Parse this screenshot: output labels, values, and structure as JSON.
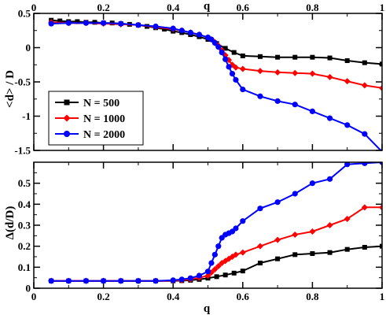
{
  "chart_data": [
    {
      "type": "line",
      "panel": "top",
      "xlabel": "q",
      "xlabel_position": "top",
      "ylabel": "<d> / D",
      "xlim": [
        0,
        1
      ],
      "ylim": [
        -1.5,
        0.5
      ],
      "xticks": [
        "0",
        "0.2",
        "0.4",
        "0.6",
        "0.8",
        "1"
      ],
      "xtick_values": [
        0,
        0.2,
        0.4,
        0.6,
        0.8,
        1
      ],
      "yticks": [
        "-1.5",
        "-1",
        "-0.5",
        "0",
        "0.5"
      ],
      "ytick_values": [
        -1.5,
        -1,
        -0.5,
        0,
        0.5
      ],
      "legend_position": "lower-left",
      "series": [
        {
          "name": "N = 500",
          "color": "#000000",
          "marker": "square",
          "x": [
            0.05,
            0.075,
            0.1,
            0.125,
            0.15,
            0.175,
            0.2,
            0.225,
            0.25,
            0.275,
            0.3,
            0.325,
            0.35,
            0.375,
            0.4,
            0.425,
            0.45,
            0.475,
            0.5,
            0.525,
            0.55,
            0.575,
            0.6,
            0.65,
            0.7,
            0.75,
            0.8,
            0.85,
            0.9,
            0.95,
            1.0
          ],
          "y": [
            0.4,
            0.39,
            0.38,
            0.38,
            0.37,
            0.37,
            0.36,
            0.36,
            0.35,
            0.34,
            0.33,
            0.31,
            0.29,
            0.27,
            0.24,
            0.22,
            0.19,
            0.16,
            0.12,
            0.06,
            -0.01,
            -0.07,
            -0.12,
            -0.13,
            -0.14,
            -0.14,
            -0.14,
            -0.15,
            -0.19,
            -0.22,
            -0.24
          ]
        },
        {
          "name": "N = 1000",
          "color": "#ff0000",
          "marker": "diamond",
          "x": [
            0.05,
            0.1,
            0.15,
            0.2,
            0.25,
            0.3,
            0.35,
            0.4,
            0.425,
            0.45,
            0.475,
            0.5,
            0.51,
            0.52,
            0.53,
            0.54,
            0.55,
            0.56,
            0.57,
            0.58,
            0.6,
            0.65,
            0.7,
            0.75,
            0.8,
            0.85,
            0.9,
            0.95,
            1.0
          ],
          "y": [
            0.37,
            0.36,
            0.36,
            0.35,
            0.34,
            0.33,
            0.3,
            0.27,
            0.25,
            0.22,
            0.19,
            0.15,
            0.12,
            0.08,
            0.03,
            -0.04,
            -0.11,
            -0.18,
            -0.25,
            -0.29,
            -0.31,
            -0.34,
            -0.36,
            -0.37,
            -0.38,
            -0.43,
            -0.49,
            -0.55,
            -0.59
          ]
        },
        {
          "name": "N = 2000",
          "color": "#0000ff",
          "marker": "circle",
          "x": [
            0.05,
            0.1,
            0.15,
            0.2,
            0.25,
            0.3,
            0.35,
            0.4,
            0.425,
            0.45,
            0.475,
            0.5,
            0.51,
            0.52,
            0.53,
            0.54,
            0.55,
            0.56,
            0.57,
            0.58,
            0.6,
            0.65,
            0.7,
            0.75,
            0.8,
            0.85,
            0.9,
            0.95,
            1.0
          ],
          "y": [
            0.35,
            0.36,
            0.36,
            0.36,
            0.35,
            0.33,
            0.31,
            0.28,
            0.25,
            0.22,
            0.19,
            0.15,
            0.12,
            0.07,
            0.01,
            -0.07,
            -0.17,
            -0.28,
            -0.38,
            -0.47,
            -0.61,
            -0.71,
            -0.78,
            -0.83,
            -0.93,
            -1.03,
            -1.13,
            -1.26,
            -1.52
          ]
        }
      ]
    },
    {
      "type": "line",
      "panel": "bottom",
      "xlabel": "q",
      "ylabel": "Δ(d/D)",
      "xlim": [
        0,
        1
      ],
      "ylim": [
        0,
        0.6
      ],
      "xticks": [
        "0",
        "0.2",
        "0.4",
        "0.6",
        "0.8",
        "1"
      ],
      "xtick_values": [
        0,
        0.2,
        0.4,
        0.6,
        0.8,
        1
      ],
      "yticks": [
        "0",
        "0.1",
        "0.2",
        "0.3",
        "0.4",
        "0.5"
      ],
      "ytick_values": [
        0,
        0.1,
        0.2,
        0.3,
        0.4,
        0.5
      ],
      "series": [
        {
          "name": "N = 500",
          "color": "#000000",
          "marker": "square",
          "x": [
            0.05,
            0.1,
            0.15,
            0.2,
            0.25,
            0.3,
            0.35,
            0.4,
            0.425,
            0.45,
            0.475,
            0.5,
            0.525,
            0.55,
            0.575,
            0.6,
            0.65,
            0.7,
            0.75,
            0.8,
            0.85,
            0.9,
            0.95,
            1.0
          ],
          "y": [
            0.035,
            0.035,
            0.035,
            0.035,
            0.035,
            0.035,
            0.035,
            0.035,
            0.036,
            0.038,
            0.042,
            0.048,
            0.055,
            0.063,
            0.072,
            0.082,
            0.12,
            0.14,
            0.16,
            0.165,
            0.17,
            0.185,
            0.195,
            0.2
          ]
        },
        {
          "name": "N = 1000",
          "color": "#ff0000",
          "marker": "diamond",
          "x": [
            0.05,
            0.1,
            0.15,
            0.2,
            0.25,
            0.3,
            0.35,
            0.4,
            0.425,
            0.45,
            0.475,
            0.5,
            0.51,
            0.52,
            0.53,
            0.54,
            0.55,
            0.56,
            0.57,
            0.58,
            0.6,
            0.65,
            0.7,
            0.75,
            0.8,
            0.85,
            0.9,
            0.95,
            1.0
          ],
          "y": [
            0.035,
            0.035,
            0.035,
            0.035,
            0.035,
            0.035,
            0.035,
            0.036,
            0.038,
            0.042,
            0.05,
            0.06,
            0.075,
            0.09,
            0.105,
            0.12,
            0.13,
            0.14,
            0.15,
            0.16,
            0.17,
            0.2,
            0.23,
            0.255,
            0.27,
            0.3,
            0.33,
            0.385,
            0.385
          ]
        },
        {
          "name": "N = 2000",
          "color": "#0000ff",
          "marker": "circle",
          "x": [
            0.05,
            0.1,
            0.15,
            0.2,
            0.25,
            0.3,
            0.35,
            0.4,
            0.425,
            0.45,
            0.475,
            0.5,
            0.51,
            0.52,
            0.53,
            0.54,
            0.55,
            0.56,
            0.57,
            0.58,
            0.6,
            0.65,
            0.7,
            0.75,
            0.8,
            0.85,
            0.9,
            0.95,
            1.0
          ],
          "y": [
            0.035,
            0.035,
            0.035,
            0.035,
            0.035,
            0.035,
            0.035,
            0.038,
            0.042,
            0.048,
            0.06,
            0.08,
            0.12,
            0.16,
            0.2,
            0.24,
            0.255,
            0.262,
            0.27,
            0.285,
            0.32,
            0.38,
            0.41,
            0.45,
            0.5,
            0.52,
            0.59,
            0.595,
            0.6
          ]
        }
      ]
    }
  ]
}
